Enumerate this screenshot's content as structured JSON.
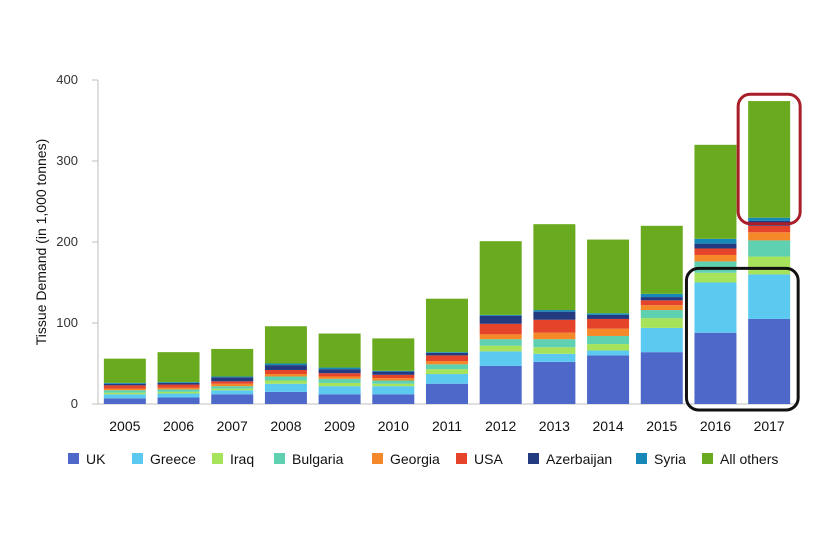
{
  "chart_data": {
    "type": "bar",
    "stacked": true,
    "categories": [
      "2005",
      "2006",
      "2007",
      "2008",
      "2009",
      "2010",
      "2011",
      "2012",
      "2013",
      "2014",
      "2015",
      "2016",
      "2017"
    ],
    "ylabel": "Tissue Demand (in 1,000 tonnes)",
    "xlabel": "",
    "ylim": [
      0,
      400
    ],
    "yticks": [
      0,
      100,
      200,
      300,
      400
    ],
    "grid": false,
    "legend_position": "bottom",
    "series": [
      {
        "name": "UK",
        "color": "#4e68c9",
        "values": [
          7,
          8,
          12,
          15,
          12,
          12,
          25,
          47,
          52,
          60,
          64,
          88,
          105
        ]
      },
      {
        "name": "Greece",
        "color": "#5ccaf0",
        "values": [
          5,
          5,
          5,
          10,
          10,
          10,
          12,
          18,
          10,
          6,
          30,
          62,
          55
        ]
      },
      {
        "name": "Iraq",
        "color": "#a6e35a",
        "values": [
          2,
          2,
          2,
          4,
          4,
          3,
          6,
          7,
          8,
          8,
          12,
          12,
          22
        ]
      },
      {
        "name": "Bulgaria",
        "color": "#5fd0b0",
        "values": [
          3,
          3,
          3,
          5,
          5,
          4,
          6,
          8,
          10,
          10,
          10,
          14,
          20
        ]
      },
      {
        "name": "Georgia",
        "color": "#f5892a",
        "values": [
          2,
          2,
          3,
          3,
          3,
          3,
          4,
          6,
          8,
          9,
          6,
          8,
          10
        ]
      },
      {
        "name": "USA",
        "color": "#e6442a",
        "values": [
          4,
          4,
          3,
          5,
          4,
          4,
          7,
          13,
          16,
          12,
          6,
          8,
          8
        ]
      },
      {
        "name": "Azerbaijan",
        "color": "#243a80",
        "values": [
          2,
          2,
          5,
          6,
          5,
          4,
          3,
          10,
          10,
          5,
          4,
          6,
          6
        ]
      },
      {
        "name": "Syria",
        "color": "#1688b8",
        "values": [
          1,
          1,
          1,
          2,
          2,
          1,
          1,
          1,
          2,
          2,
          4,
          6,
          4
        ]
      },
      {
        "name": "All others",
        "color": "#6aaa1e",
        "values": [
          30,
          37,
          34,
          46,
          42,
          40,
          66,
          91,
          106,
          91,
          84,
          116,
          144
        ]
      }
    ],
    "highlights": [
      {
        "category": "2017",
        "from": 230,
        "to": 375,
        "color": "#a81f2a"
      },
      {
        "category": "2016",
        "from": 0,
        "to": 160,
        "color": "#111111",
        "span_to_category": "2017"
      }
    ]
  }
}
